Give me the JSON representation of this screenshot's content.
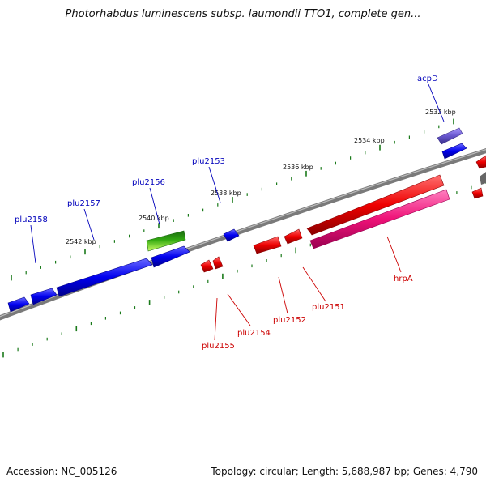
{
  "title": "Photorhabdus luminescens subsp. laumondii TTO1, complete gen...",
  "footer": {
    "accession": "Accession: NC_005126",
    "info": "Topology: circular; Length: 5,688,987 bp; Genes: 4,790"
  },
  "colors": {
    "backbone": "#777777",
    "tick": "#1a7a1a",
    "forward_gene": "#0000ee",
    "reverse_gene": "#ee0000",
    "rrna_like": "#ee1177",
    "purple_gene": "#6655cc",
    "green_gene": "#33aa11",
    "forward_label": "#0000bb",
    "reverse_label": "#cc0000"
  },
  "ruler_labels": [
    "2532 kbp",
    "2534 kbp",
    "2536 kbp",
    "2538 kbp",
    "2540 kbp",
    "2542 kbp"
  ],
  "gene_labels": {
    "forward": [
      "acpD",
      "plu2153",
      "plu2156",
      "plu2157",
      "plu2158"
    ],
    "reverse": [
      "hrpA",
      "plu2151",
      "plu2152",
      "plu2154",
      "plu2155"
    ]
  }
}
